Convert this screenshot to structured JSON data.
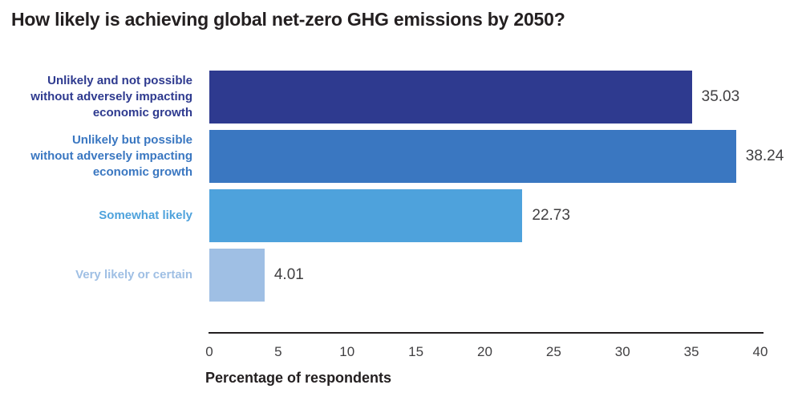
{
  "title": "How likely is achieving global net-zero GHG emissions by 2050?",
  "chart_data": {
    "type": "bar",
    "orientation": "horizontal",
    "title": "How likely is achieving global net-zero GHG emissions by 2050?",
    "categories": [
      "Unlikely and not possible\nwithout adversely impacting\neconomic growth",
      "Unlikely but possible\nwithout adversely impacting\neconomic growth",
      "Somewhat likely",
      "Very likely or certain"
    ],
    "values": [
      35.03,
      38.24,
      22.73,
      4.01
    ],
    "value_labels": [
      "35.03",
      "38.24",
      "22.73",
      "4.01"
    ],
    "bar_colors": [
      "#2e3a8f",
      "#3a77c1",
      "#4ea2dc",
      "#9fbfe4"
    ],
    "xlabel": "Percentage of respondents",
    "xlim": [
      0,
      40
    ],
    "xticks": [
      0,
      5,
      10,
      15,
      20,
      25,
      30,
      35,
      40
    ],
    "grid": false,
    "legend": "none",
    "colors": {
      "title_text": "#231f20",
      "value_text": "#414042",
      "tick_text": "#414042",
      "axis_line": "#231f20"
    }
  }
}
